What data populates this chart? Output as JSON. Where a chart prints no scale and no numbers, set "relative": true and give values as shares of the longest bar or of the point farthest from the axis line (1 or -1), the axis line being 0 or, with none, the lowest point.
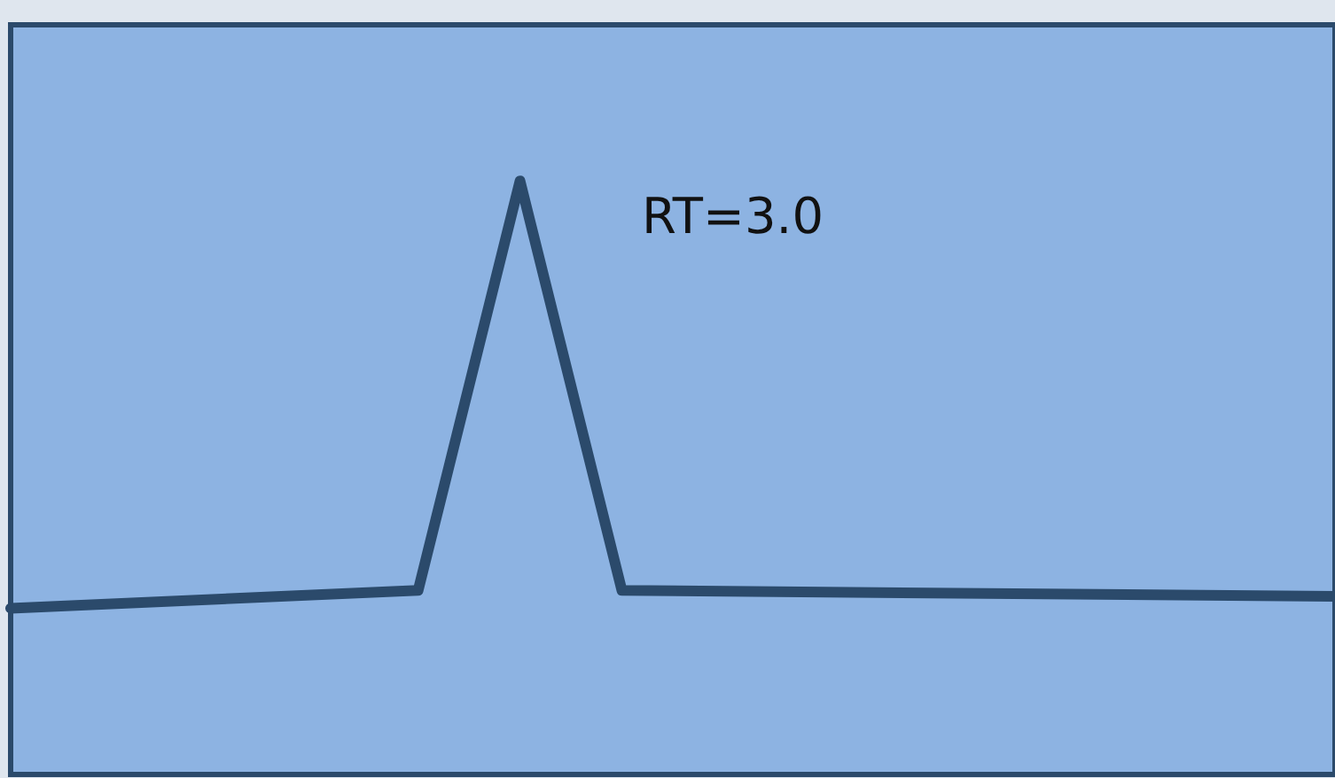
{
  "chart_data": {
    "type": "line",
    "relative": true,
    "marker": "none",
    "categories": [
      null,
      null,
      null,
      null,
      null,
      null,
      null,
      null,
      null,
      null,
      null,
      null,
      null,
      null
    ],
    "series": [
      {
        "color": "#2b4a6b",
        "values": [
          0.28,
          null,
          null,
          null,
          0.31,
          1,
          0.31,
          null,
          null,
          null,
          null,
          null,
          null,
          0.3
        ]
      }
    ],
    "annotations": [
      "RT=3.0"
    ]
  }
}
